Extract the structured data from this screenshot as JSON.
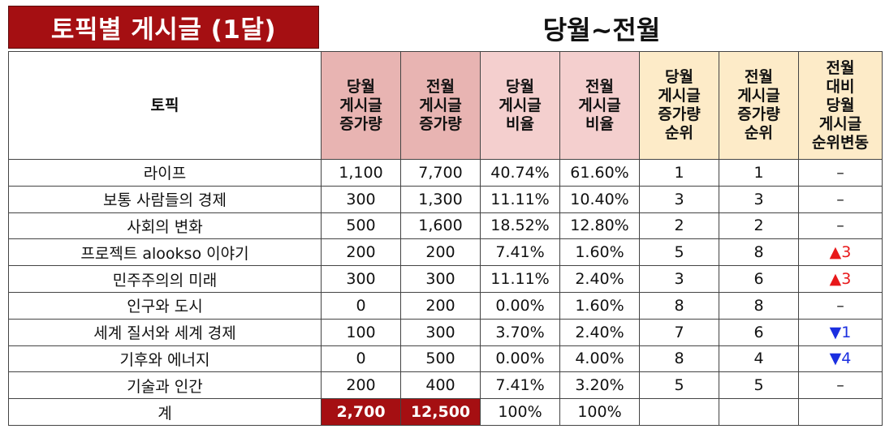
{
  "title": "토픽별 게시글 (1달)",
  "period": "당월~전월",
  "columns": {
    "topic": "토픽",
    "cur_count": [
      "당월",
      "게시글",
      "증가량"
    ],
    "prev_count": [
      "전월",
      "게시글",
      "증가량"
    ],
    "cur_ratio": [
      "당월",
      "게시글",
      "비율"
    ],
    "prev_ratio": [
      "전월",
      "게시글",
      "비율"
    ],
    "cur_rank": [
      "당월",
      "게시글",
      "증가량",
      "순위"
    ],
    "prev_rank": [
      "전월",
      "게시글",
      "증가량",
      "순위"
    ],
    "rank_change": [
      "전월",
      "대비",
      "당월",
      "게시글",
      "순위변동"
    ]
  },
  "rows": [
    {
      "topic": "라이프",
      "cur": "1,100",
      "prev": "7,700",
      "cur_ratio": "40.74%",
      "prev_ratio": "61.60%",
      "cur_rank": "1",
      "prev_rank": "1",
      "change": "–",
      "dir": "none"
    },
    {
      "topic": "보통 사람들의 경제",
      "cur": "300",
      "prev": "1,300",
      "cur_ratio": "11.11%",
      "prev_ratio": "10.40%",
      "cur_rank": "3",
      "prev_rank": "3",
      "change": "–",
      "dir": "none"
    },
    {
      "topic": "사회의 변화",
      "cur": "500",
      "prev": "1,600",
      "cur_ratio": "18.52%",
      "prev_ratio": "12.80%",
      "cur_rank": "2",
      "prev_rank": "2",
      "change": "–",
      "dir": "none"
    },
    {
      "topic": "프로젝트 alookso 이야기",
      "cur": "200",
      "prev": "200",
      "cur_ratio": "7.41%",
      "prev_ratio": "1.60%",
      "cur_rank": "5",
      "prev_rank": "8",
      "change": "▲3",
      "dir": "up"
    },
    {
      "topic": "민주주의의 미래",
      "cur": "300",
      "prev": "300",
      "cur_ratio": "11.11%",
      "prev_ratio": "2.40%",
      "cur_rank": "3",
      "prev_rank": "6",
      "change": "▲3",
      "dir": "up"
    },
    {
      "topic": "인구와 도시",
      "cur": "0",
      "prev": "200",
      "cur_ratio": "0.00%",
      "prev_ratio": "1.60%",
      "cur_rank": "8",
      "prev_rank": "8",
      "change": "–",
      "dir": "none"
    },
    {
      "topic": "세계 질서와 세계 경제",
      "cur": "100",
      "prev": "300",
      "cur_ratio": "3.70%",
      "prev_ratio": "2.40%",
      "cur_rank": "7",
      "prev_rank": "6",
      "change": "▼1",
      "dir": "down"
    },
    {
      "topic": "기후와 에너지",
      "cur": "0",
      "prev": "500",
      "cur_ratio": "0.00%",
      "prev_ratio": "4.00%",
      "cur_rank": "8",
      "prev_rank": "4",
      "change": "▼4",
      "dir": "down"
    },
    {
      "topic": "기술과 인간",
      "cur": "200",
      "prev": "400",
      "cur_ratio": "7.41%",
      "prev_ratio": "3.20%",
      "cur_rank": "5",
      "prev_rank": "5",
      "change": "–",
      "dir": "none"
    }
  ],
  "total": {
    "label": "계",
    "cur": "2,700",
    "prev": "12,500",
    "cur_ratio": "100%",
    "prev_ratio": "100%"
  },
  "colors": {
    "title_bg": "#a50f12",
    "header_rose": "#e8b4b2",
    "header_pink": "#f4cfce",
    "header_cream": "#fdebc8",
    "up": "#e8181a",
    "down": "#1b2fe0"
  }
}
